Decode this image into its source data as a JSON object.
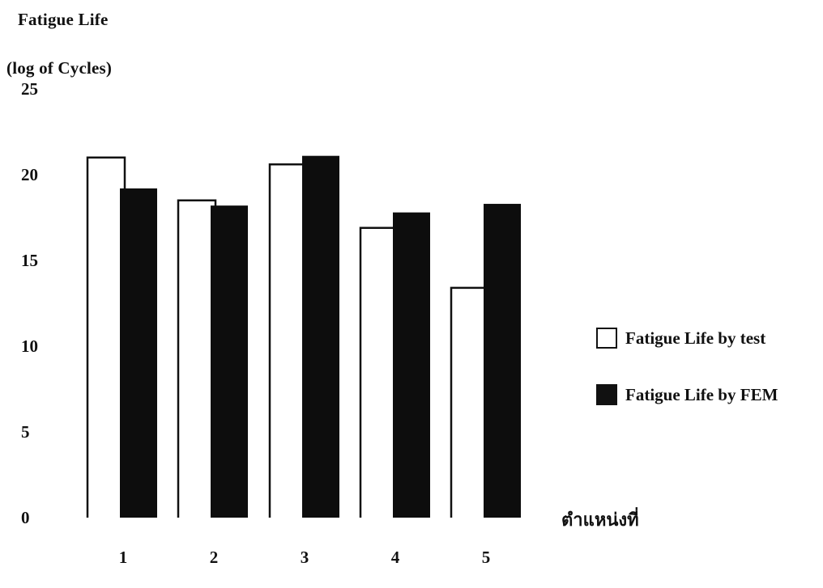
{
  "chart_data": {
    "type": "bar",
    "title_lines": [
      "Fatigue Life",
      "(log of Cycles)"
    ],
    "xlabel": "ตำแหน่งที่",
    "ylabel": "",
    "ylim": [
      0,
      25
    ],
    "yticks": [
      0,
      5,
      10,
      15,
      20,
      25
    ],
    "categories": [
      "1",
      "2",
      "3",
      "4",
      "5"
    ],
    "series": [
      {
        "name": "Fatigue Life by test",
        "values": [
          21.0,
          18.5,
          20.6,
          16.9,
          13.4
        ],
        "color": "#ffffff",
        "stroke": "#111111"
      },
      {
        "name": "Fatigue Life by FEM",
        "values": [
          19.2,
          18.2,
          21.1,
          17.8,
          18.3
        ],
        "color": "#0d0d0d"
      }
    ],
    "legend_position": "right",
    "grid": false
  }
}
